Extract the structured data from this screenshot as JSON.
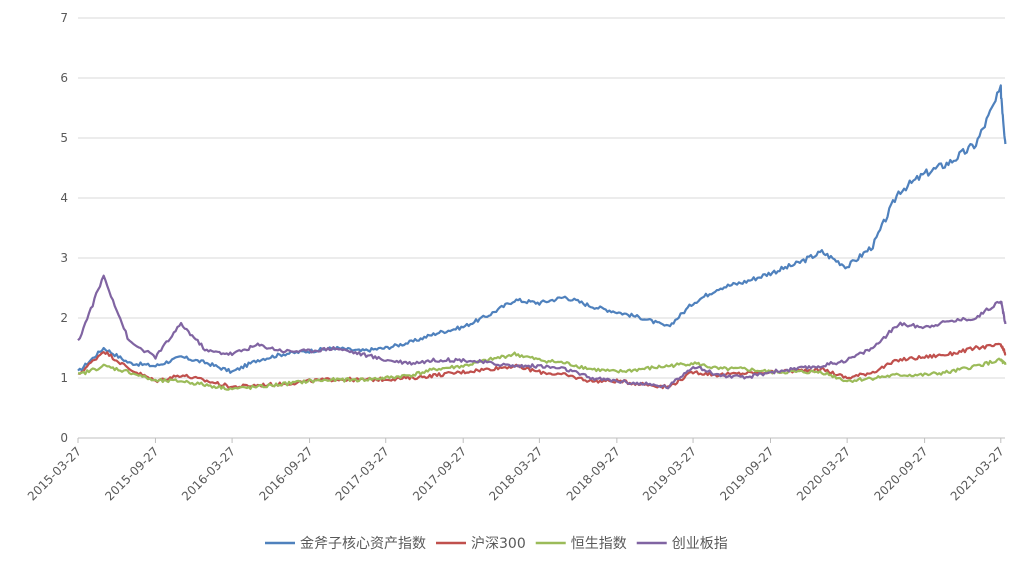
{
  "chart_data": {
    "type": "line",
    "title": "",
    "xlabel": "",
    "ylabel": "",
    "ylim": [
      0,
      7
    ],
    "yticks": [
      "0",
      "1",
      "2",
      "3",
      "4",
      "5",
      "6",
      "7"
    ],
    "x_ticks": [
      "2015-03-27",
      "2015-09-27",
      "2016-03-27",
      "2016-09-27",
      "2017-03-27",
      "2017-09-27",
      "2018-03-27",
      "2018-09-27",
      "2019-03-27",
      "2019-09-27",
      "2020-03-27",
      "2020-09-27",
      "2021-03-27"
    ],
    "grid": "horizontal",
    "legend": "bottom",
    "x": [
      "2015-03-27",
      "2015-05-27",
      "2015-07-27",
      "2015-09-27",
      "2015-11-27",
      "2016-01-27",
      "2016-03-27",
      "2016-05-27",
      "2016-07-27",
      "2016-09-27",
      "2016-11-27",
      "2017-01-27",
      "2017-03-27",
      "2017-05-27",
      "2017-07-27",
      "2017-09-27",
      "2017-11-27",
      "2018-01-27",
      "2018-03-27",
      "2018-05-27",
      "2018-07-27",
      "2018-09-27",
      "2018-11-27",
      "2019-01-27",
      "2019-03-27",
      "2019-05-27",
      "2019-07-27",
      "2019-09-27",
      "2019-11-27",
      "2020-01-27",
      "2020-03-27",
      "2020-05-27",
      "2020-07-27",
      "2020-09-27",
      "2020-11-27",
      "2021-01-27",
      "2021-03-27",
      "2021-04-07"
    ],
    "series": [
      {
        "name": "金斧子核心资产指数",
        "color": "#4f81bd",
        "values": [
          1.1,
          1.5,
          1.25,
          1.2,
          1.35,
          1.25,
          1.1,
          1.3,
          1.4,
          1.45,
          1.5,
          1.45,
          1.5,
          1.6,
          1.75,
          1.85,
          2.05,
          2.3,
          2.25,
          2.35,
          2.2,
          2.1,
          2.0,
          1.85,
          2.25,
          2.5,
          2.6,
          2.75,
          2.9,
          3.1,
          2.85,
          3.2,
          4.1,
          4.4,
          4.6,
          4.9,
          5.8,
          4.9
        ]
      },
      {
        "name": "沪深300",
        "color": "#c0504d",
        "values": [
          1.05,
          1.45,
          1.15,
          0.95,
          1.05,
          0.95,
          0.85,
          0.88,
          0.9,
          0.95,
          0.98,
          0.97,
          0.98,
          1.0,
          1.05,
          1.1,
          1.15,
          1.2,
          1.1,
          1.05,
          0.95,
          0.95,
          0.9,
          0.85,
          1.1,
          1.05,
          1.08,
          1.1,
          1.12,
          1.15,
          1.0,
          1.1,
          1.3,
          1.35,
          1.4,
          1.5,
          1.55,
          1.4
        ]
      },
      {
        "name": "恒生指数",
        "color": "#9bbb59",
        "values": [
          1.05,
          1.2,
          1.1,
          0.95,
          0.95,
          0.88,
          0.82,
          0.85,
          0.9,
          0.95,
          0.97,
          0.97,
          1.0,
          1.05,
          1.15,
          1.2,
          1.3,
          1.4,
          1.3,
          1.25,
          1.15,
          1.1,
          1.15,
          1.2,
          1.25,
          1.15,
          1.15,
          1.1,
          1.1,
          1.1,
          0.95,
          1.0,
          1.05,
          1.05,
          1.1,
          1.2,
          1.3,
          1.22
        ]
      },
      {
        "name": "创业板指",
        "color": "#8064a2",
        "values": [
          1.6,
          2.7,
          1.6,
          1.35,
          1.9,
          1.45,
          1.4,
          1.55,
          1.45,
          1.45,
          1.5,
          1.4,
          1.3,
          1.25,
          1.3,
          1.3,
          1.25,
          1.2,
          1.2,
          1.15,
          1.0,
          0.95,
          0.9,
          0.85,
          1.2,
          1.05,
          1.0,
          1.1,
          1.15,
          1.2,
          1.3,
          1.5,
          1.9,
          1.85,
          1.95,
          2.0,
          2.3,
          1.9
        ]
      }
    ]
  }
}
